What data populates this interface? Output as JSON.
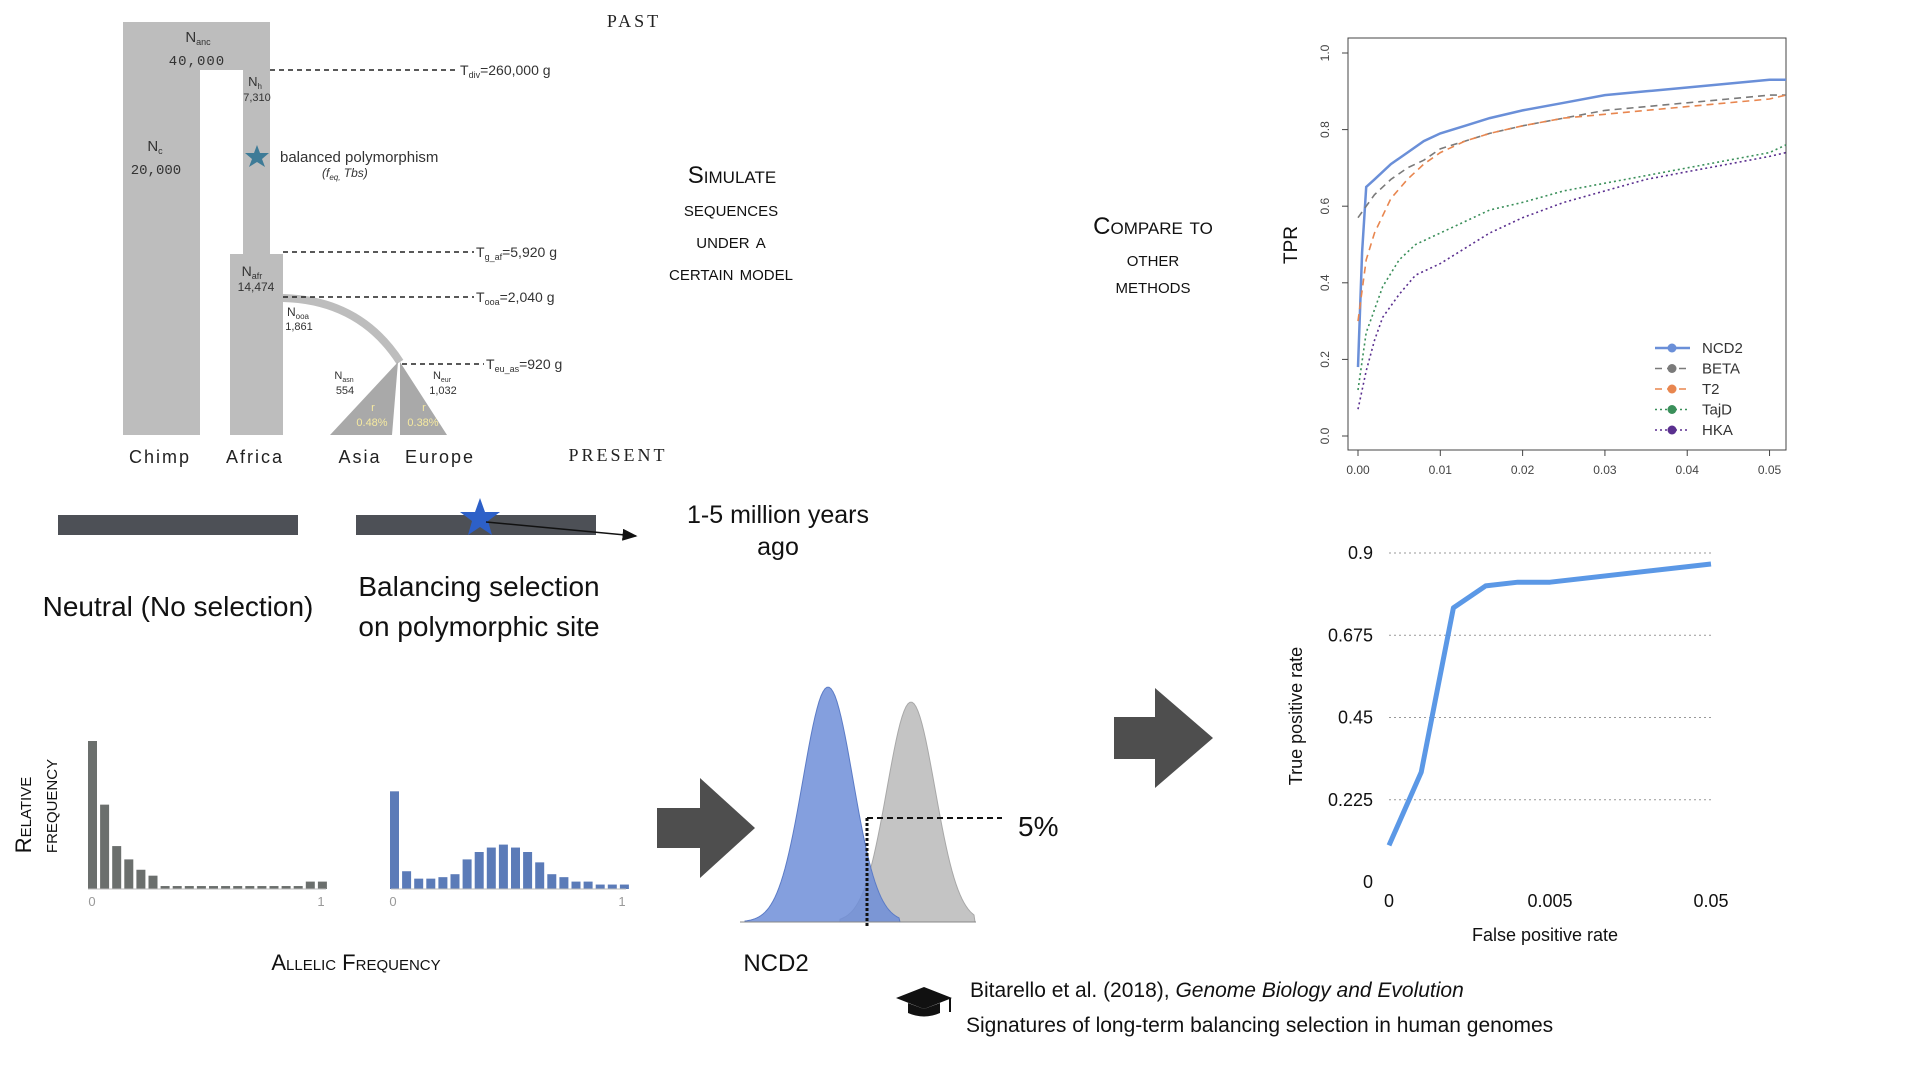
{
  "demography": {
    "past": "PAST",
    "present": "PRESENT",
    "n_anc": "N",
    "n_anc_sub": "anc",
    "n_anc_val": "40,000",
    "n_c": "N",
    "n_c_sub": "c",
    "n_c_val": "20,000",
    "n_h": "N",
    "n_h_sub": "h",
    "n_h_val": "7,310",
    "n_afr": "N",
    "n_afr_sub": "afr",
    "n_afr_val": "14,474",
    "n_ooa": "N",
    "n_ooa_sub": "ooa",
    "n_ooa_val": "1,861",
    "n_asn": "N",
    "n_asn_sub": "asn",
    "n_asn_val": "554",
    "n_eur": "N",
    "n_eur_sub": "eur",
    "n_eur_val": "1,032",
    "r_asn": "r",
    "r_asn_val": "0.48%",
    "r_eur": "r",
    "r_eur_val": "0.38%",
    "t_div": "T",
    "t_div_sub": "div",
    "t_div_val": "=260,000 g",
    "t_gaf": "T",
    "t_gaf_sub": "g_af",
    "t_gaf_val": "=5,920 g",
    "t_ooa": "T",
    "t_ooa_sub": "ooa",
    "t_ooa_val": "=2,040 g",
    "t_euas": "T",
    "t_euas_sub": "eu_as",
    "t_euas_val": "=920  g",
    "balanced": "balanced polymorphism",
    "balanced_params": "(f",
    "balanced_params_sub": "eq,",
    "balanced_params_end": " Tbs)",
    "pop_labels": [
      "Chimp",
      "Africa",
      "Asia",
      "Europe"
    ]
  },
  "simulate_text": [
    "Simulate",
    "sequences",
    "under a",
    "certain model"
  ],
  "compare_text": [
    "Compare to",
    "other",
    "methods"
  ],
  "bars": {
    "neutral_label": "Neutral (No selection)",
    "balancing_label_1": "Balancing selection",
    "balancing_label_2": "on polymorphic site",
    "time_label_1": "1-5 million years",
    "time_label_2": "ago"
  },
  "sfs": {
    "ylabel_1": "Relative",
    "ylabel_2": "frequency",
    "xlabel": "Allelic Frequency",
    "tick_0": "0",
    "tick_1": "1",
    "neutral_color": "#6b6f6d",
    "balancing_color": "#5b7bb8",
    "neutral": [
      1.0,
      0.57,
      0.29,
      0.2,
      0.13,
      0.09,
      0.02,
      0.02,
      0.02,
      0.02,
      0.02,
      0.02,
      0.02,
      0.02,
      0.02,
      0.02,
      0.02,
      0.02,
      0.05,
      0.05
    ],
    "balancing": [
      0.66,
      0.12,
      0.07,
      0.07,
      0.08,
      0.1,
      0.2,
      0.25,
      0.28,
      0.3,
      0.28,
      0.25,
      0.18,
      0.1,
      0.08,
      0.05,
      0.05,
      0.03,
      0.03,
      0.03
    ]
  },
  "ncd": {
    "label": "NCD2",
    "threshold_label": "5%",
    "blue_color": "#6f8ed8",
    "gray_color": "#c4c4c4"
  },
  "chart_data": [
    {
      "type": "line",
      "ylabel": "TPR",
      "xlim": [
        0,
        0.052
      ],
      "ylim": [
        0,
        1
      ],
      "x_ticks": [
        "0.00",
        "0.01",
        "0.02",
        "0.03",
        "0.04",
        "0.05"
      ],
      "y_ticks": [
        "0.0",
        "0.2",
        "0.4",
        "0.6",
        "0.8",
        "1.0"
      ],
      "legend_position": "bottom-right",
      "series": [
        {
          "name": "NCD2",
          "color": "#6a8fd8",
          "style": "solid",
          "x": [
            0,
            0.0005,
            0.001,
            0.002,
            0.004,
            0.006,
            0.008,
            0.01,
            0.013,
            0.016,
            0.02,
            0.025,
            0.03,
            0.035,
            0.04,
            0.045,
            0.05,
            0.052
          ],
          "y": [
            0.18,
            0.48,
            0.65,
            0.67,
            0.71,
            0.74,
            0.77,
            0.79,
            0.81,
            0.83,
            0.85,
            0.87,
            0.89,
            0.9,
            0.91,
            0.92,
            0.93,
            0.93
          ]
        },
        {
          "name": "BETA",
          "color": "#7a7a7a",
          "style": "dashed",
          "x": [
            0,
            0.001,
            0.002,
            0.004,
            0.006,
            0.008,
            0.01,
            0.013,
            0.016,
            0.02,
            0.025,
            0.03,
            0.035,
            0.04,
            0.045,
            0.05,
            0.052
          ],
          "y": [
            0.57,
            0.6,
            0.63,
            0.67,
            0.7,
            0.72,
            0.75,
            0.77,
            0.79,
            0.81,
            0.83,
            0.85,
            0.86,
            0.87,
            0.88,
            0.89,
            0.89
          ]
        },
        {
          "name": "T2",
          "color": "#e8864f",
          "style": "dashed",
          "x": [
            0,
            0.001,
            0.002,
            0.004,
            0.006,
            0.008,
            0.01,
            0.013,
            0.016,
            0.02,
            0.025,
            0.03,
            0.035,
            0.04,
            0.045,
            0.05,
            0.052
          ],
          "y": [
            0.3,
            0.46,
            0.53,
            0.62,
            0.67,
            0.71,
            0.74,
            0.77,
            0.79,
            0.81,
            0.83,
            0.84,
            0.85,
            0.86,
            0.87,
            0.88,
            0.89
          ]
        },
        {
          "name": "TajD",
          "color": "#3a8f5a",
          "style": "dotted",
          "x": [
            0,
            0.001,
            0.002,
            0.003,
            0.005,
            0.007,
            0.01,
            0.013,
            0.016,
            0.02,
            0.025,
            0.03,
            0.035,
            0.04,
            0.045,
            0.05,
            0.052
          ],
          "y": [
            0.12,
            0.27,
            0.33,
            0.39,
            0.46,
            0.5,
            0.53,
            0.56,
            0.59,
            0.61,
            0.64,
            0.66,
            0.68,
            0.7,
            0.72,
            0.74,
            0.76
          ]
        },
        {
          "name": "HKA",
          "color": "#5a2f8f",
          "style": "dotted",
          "x": [
            0,
            0.001,
            0.002,
            0.003,
            0.005,
            0.007,
            0.01,
            0.013,
            0.016,
            0.02,
            0.025,
            0.03,
            0.035,
            0.04,
            0.045,
            0.05,
            0.052
          ],
          "y": [
            0.07,
            0.17,
            0.25,
            0.31,
            0.37,
            0.42,
            0.45,
            0.49,
            0.53,
            0.57,
            0.61,
            0.64,
            0.67,
            0.69,
            0.71,
            0.73,
            0.74
          ]
        }
      ]
    },
    {
      "type": "line",
      "xlabel": "False positive rate",
      "ylabel": "True positive rate",
      "x_ticks": [
        "0",
        "0.005",
        "0.05"
      ],
      "y_ticks": [
        "0",
        "0.225",
        "0.45",
        "0.675",
        "0.9"
      ],
      "ylim": [
        0,
        0.9
      ],
      "grid": true,
      "series": [
        {
          "color": "#5b98e6",
          "x_index": [
            0,
            1,
            2,
            3,
            4,
            5,
            10
          ],
          "y": [
            0.1,
            0.3,
            0.75,
            0.81,
            0.82,
            0.82,
            0.87
          ]
        }
      ]
    }
  ],
  "citation": {
    "authors": "Bitarello et al. (2018), ",
    "journal": "Genome Biology and Evolution",
    "title": "Signatures of long-term balancing selection in human genomes"
  }
}
